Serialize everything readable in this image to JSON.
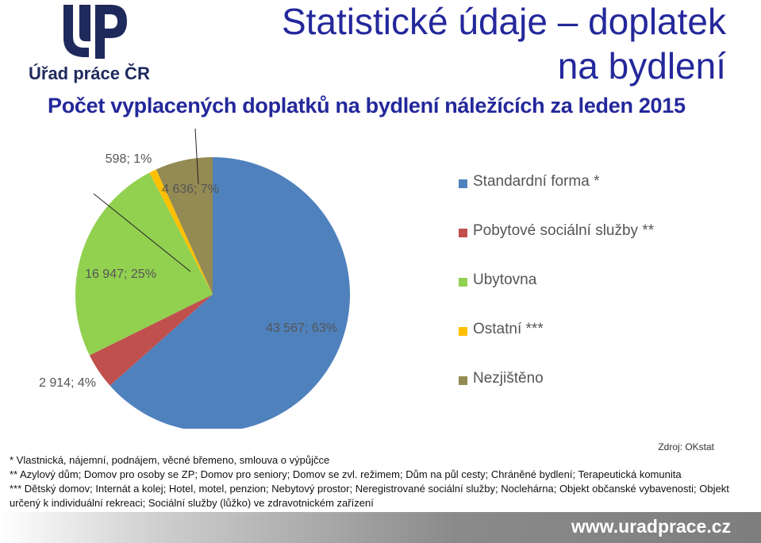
{
  "logo": {
    "text": "Úřad práce ČR"
  },
  "header": {
    "title_line1": "Statistické údaje – doplatek",
    "title_line2": "na bydlení"
  },
  "subtitle": "Počet vyplacených doplatků na bydlení náležících za leden 2015",
  "chart_data": {
    "type": "pie",
    "slices": [
      {
        "name": "Standardní forma *",
        "value": 43567,
        "label": "43 567; 63%",
        "color": "#4f81bd"
      },
      {
        "name": "Pobytové sociální služby **",
        "value": 2914,
        "label": "2 914; 4%",
        "color": "#c0504d"
      },
      {
        "name": "Ubytovna",
        "value": 16947,
        "label": "16 947; 25%",
        "color": "#92d050"
      },
      {
        "name": "Ostatní ***",
        "value": 598,
        "label": "598; 1%",
        "color": "#ffc000"
      },
      {
        "name": "Nezjištěno",
        "value": 4636,
        "label": "4 636; 7%",
        "color": "#948a54"
      }
    ],
    "legend_position": "right"
  },
  "source": "Zdroj: OKstat",
  "notes": [
    "* Vlastnická, nájemní, podnájem, věcné břemeno, smlouva o výpůjčce",
    "** Azylový dům; Domov pro osoby se ZP; Domov pro seniory; Domov se zvl. režimem; Dům na půl cesty; Chráněné bydlení; Terapeutická komunita",
    "*** Dětský domov; Internát a kolej; Hotel, motel, penzion; Nebytový prostor; Neregistrované sociální služby; Noclehárna; Objekt občanské vybavenosti; Objekt určený k individuální rekreaci; Sociální služby (lůžko) ve zdravotnickém zařízení"
  ],
  "footer": {
    "url": "www.uradprace.cz"
  },
  "colors": {
    "title": "#24289b",
    "logo": "#1f2a5c"
  }
}
